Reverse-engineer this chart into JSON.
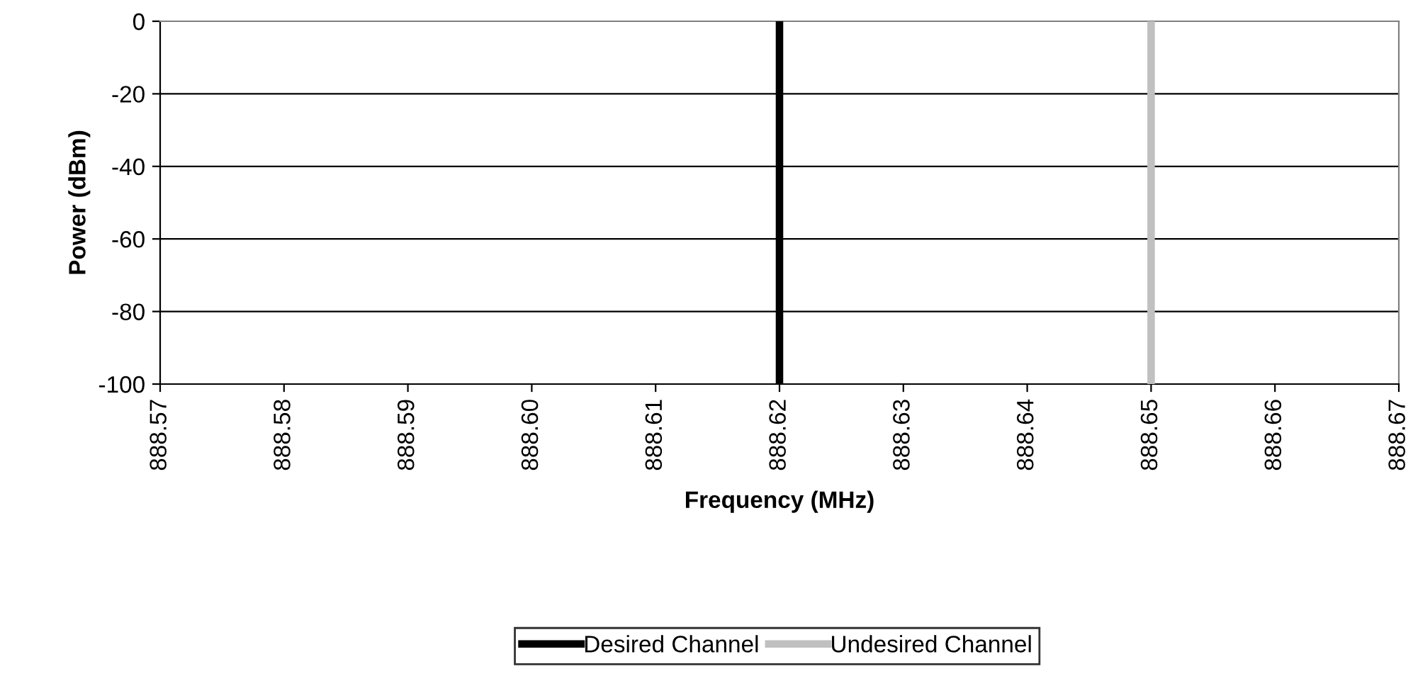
{
  "chart_data": {
    "type": "line",
    "xlabel": "Frequency (MHz)",
    "ylabel": "Power (dBm)",
    "ref_lines": [
      {
        "axis": "x",
        "value": 888.62,
        "label": "Desired Channel",
        "color": "#000000",
        "line_style": "solid"
      },
      {
        "axis": "x",
        "value": 888.65,
        "label": "Undesired Channel",
        "color": "#c0c0c0",
        "line_style": "solid"
      }
    ],
    "xlim": [
      888.57,
      888.67
    ],
    "xticks": [
      {
        "value": 888.57,
        "label": "888.57"
      },
      {
        "value": 888.58,
        "label": "888.58"
      },
      {
        "value": 888.59,
        "label": "888.59"
      },
      {
        "value": 888.6,
        "label": "888.60"
      },
      {
        "value": 888.61,
        "label": "888.61"
      },
      {
        "value": 888.62,
        "label": "888.62"
      },
      {
        "value": 888.63,
        "label": "888.63"
      },
      {
        "value": 888.64,
        "label": "888.64"
      },
      {
        "value": 888.65,
        "label": "888.65"
      },
      {
        "value": 888.66,
        "label": "888.66"
      },
      {
        "value": 888.67,
        "label": "888.67"
      }
    ],
    "ylim": [
      -100,
      0
    ],
    "yticks": [
      -100,
      -80,
      -60,
      -40,
      -20,
      0
    ],
    "grid": "y",
    "legend": "bottom"
  }
}
